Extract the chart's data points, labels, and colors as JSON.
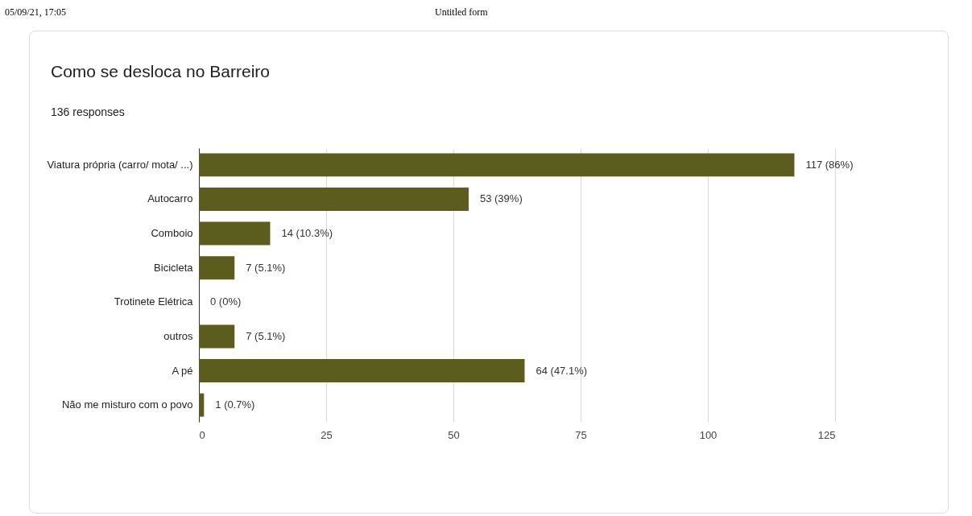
{
  "chart_data": {
    "type": "bar",
    "orientation": "horizontal",
    "title": "Como se desloca no Barreiro",
    "subtitle": "136 responses",
    "annotations": [
      "05/09/21, 17:05",
      "Untitled form"
    ],
    "categories": [
      "Viatura própria (carro/ mota/ ...)",
      "Autocarro",
      "Comboio",
      "Bicicleta",
      "Trotinete Elétrica",
      "outros",
      "A pé",
      "Não me misturo com o povo"
    ],
    "values": [
      117,
      53,
      14,
      7,
      0,
      7,
      64,
      1
    ],
    "value_labels": [
      "117 (86%)",
      "53 (39%)",
      "14 (10.3%)",
      "7 (5.1%)",
      "0 (0%)",
      "7 (5.1%)",
      "64 (47.1%)",
      "1 (0.7%)"
    ],
    "color": "#5b5c1d",
    "xlim": [
      0,
      125
    ],
    "xticks": [
      0,
      25,
      50,
      75,
      100,
      125
    ],
    "grid": "x"
  }
}
